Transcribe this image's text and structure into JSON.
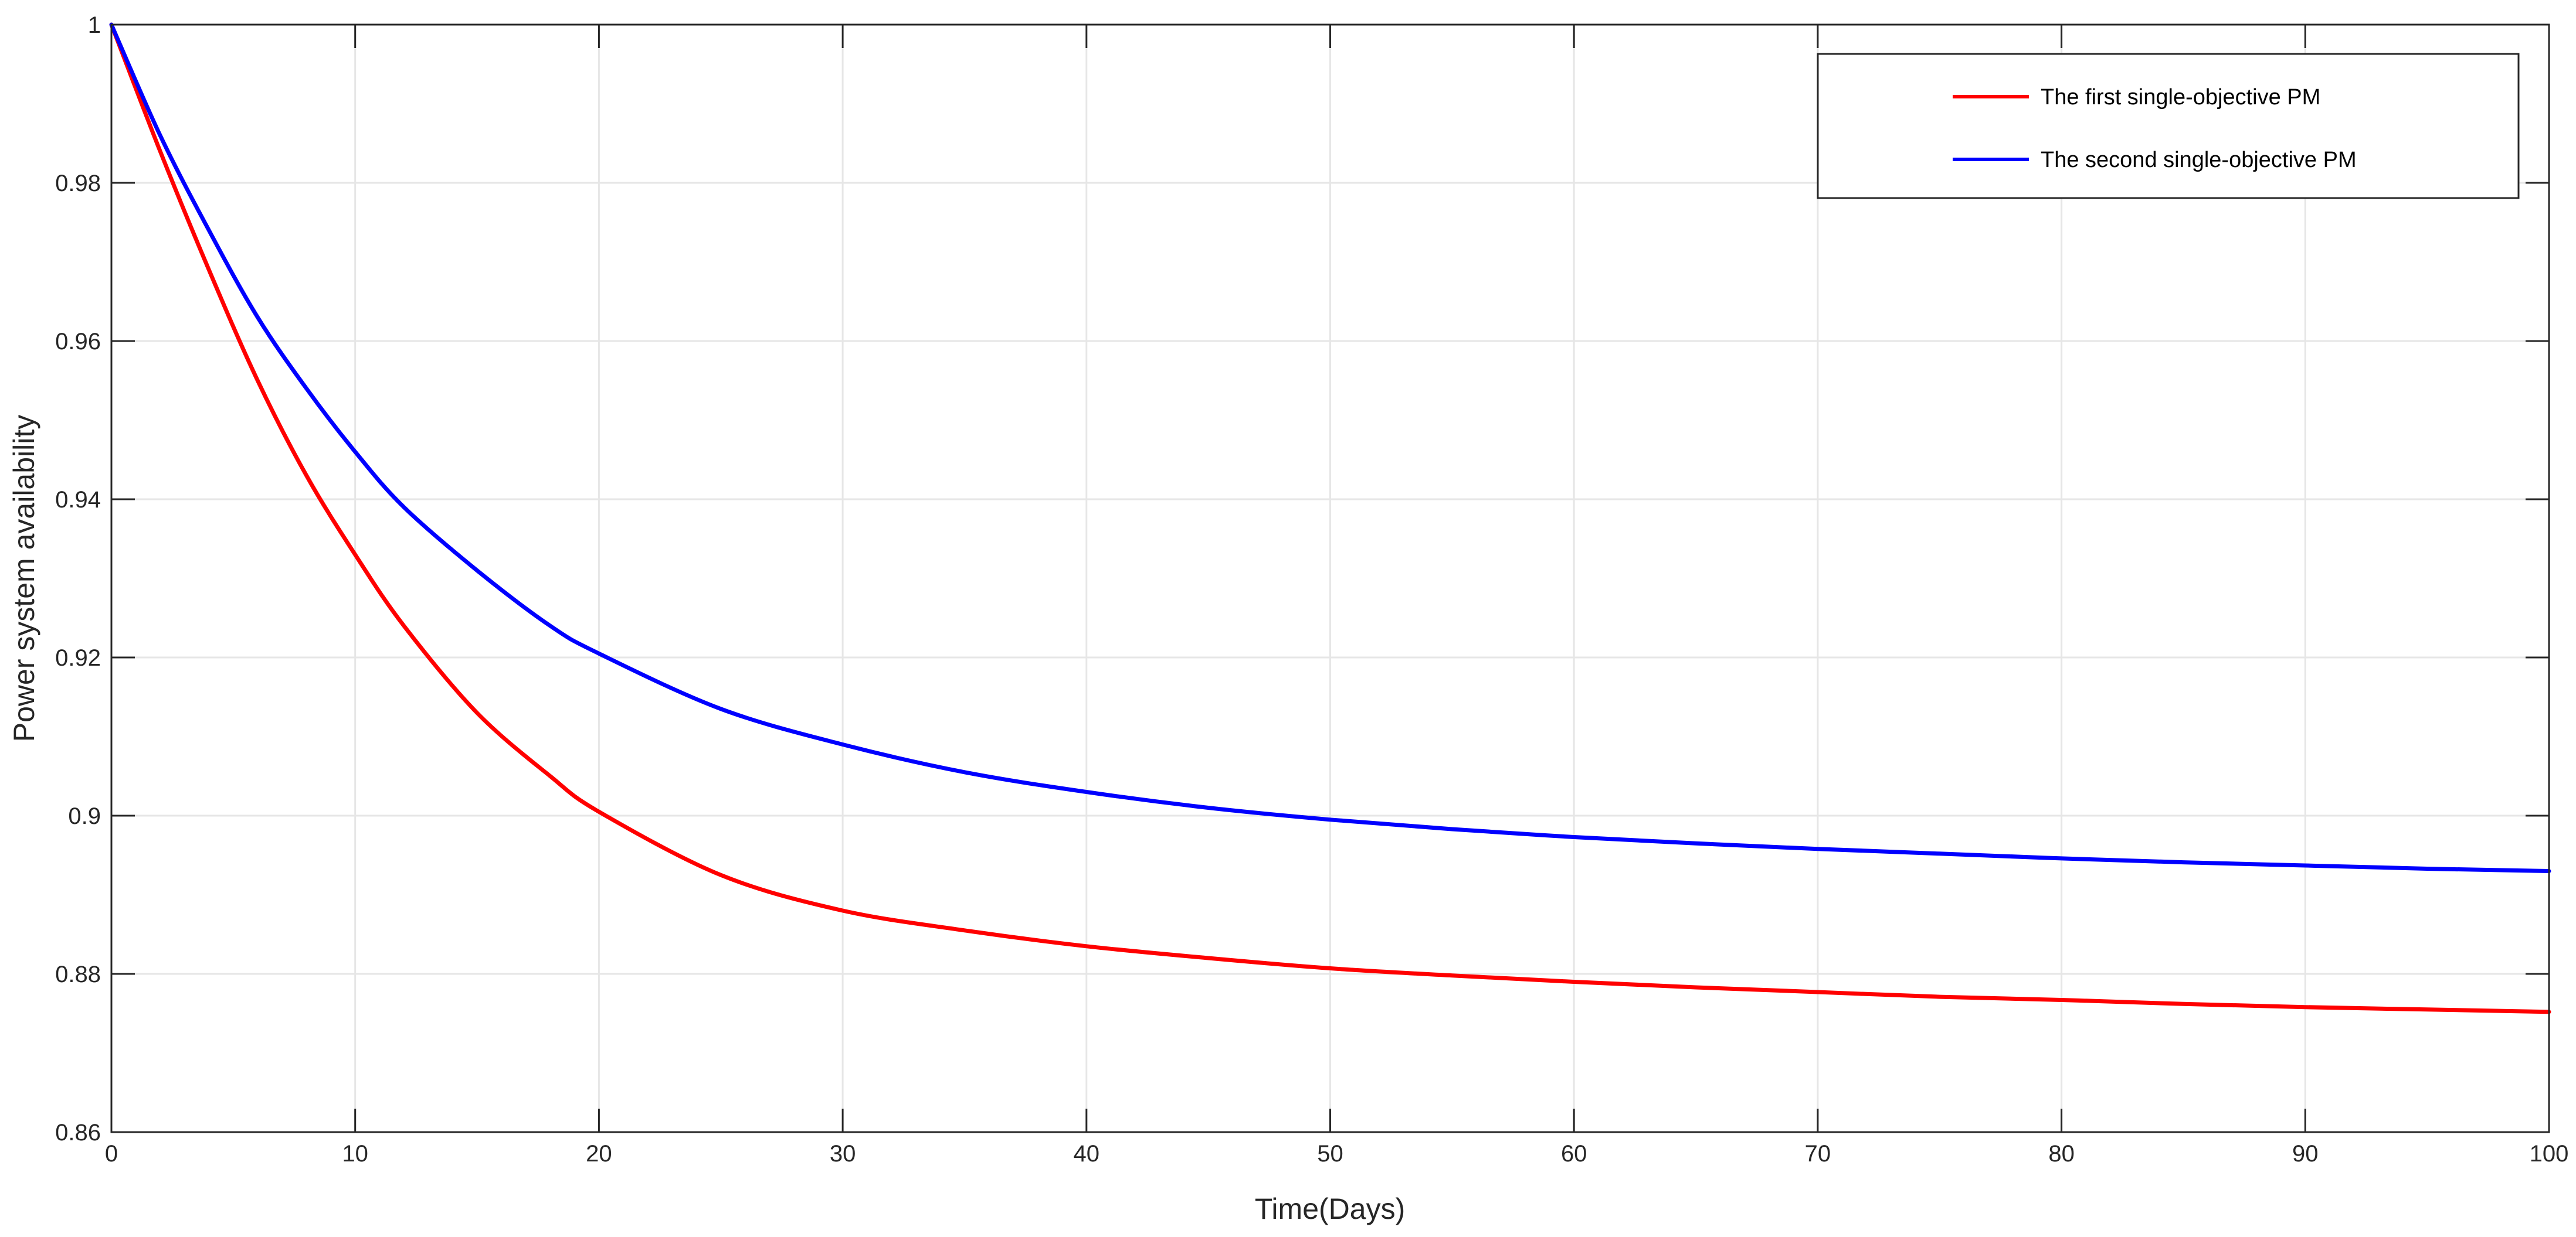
{
  "chart_data": {
    "type": "line",
    "title": "",
    "xlabel": "Time(Days)",
    "ylabel": "Power system availability",
    "xlim": [
      0,
      100
    ],
    "ylim": [
      0.86,
      1
    ],
    "grid": true,
    "legend_position": "top-right",
    "xticks": [
      0,
      10,
      20,
      30,
      40,
      50,
      60,
      70,
      80,
      90,
      100
    ],
    "xtick_labels": [
      "0",
      "10",
      "20",
      "30",
      "40",
      "50",
      "60",
      "70",
      "80",
      "90",
      "100"
    ],
    "yticks": [
      0.86,
      0.88,
      0.9,
      0.92,
      0.94,
      0.96,
      0.98,
      1
    ],
    "ytick_labels": [
      "0.86",
      "0.88",
      "0.9",
      "0.92",
      "0.94",
      "0.96",
      "0.98",
      "1"
    ],
    "x": [
      0,
      2,
      4,
      6,
      8,
      10,
      12,
      15,
      18,
      20,
      25,
      30,
      35,
      40,
      45,
      50,
      55,
      60,
      65,
      70,
      75,
      80,
      85,
      90,
      95,
      100
    ],
    "series": [
      {
        "name": "The first single-objective PM",
        "color": "#ff0000",
        "values": [
          1.0,
          0.984,
          0.969,
          0.955,
          0.943,
          0.933,
          0.924,
          0.913,
          0.905,
          0.9005,
          0.8925,
          0.888,
          0.8855,
          0.8835,
          0.882,
          0.8807,
          0.8798,
          0.879,
          0.8783,
          0.8777,
          0.8771,
          0.8767,
          0.8762,
          0.8758,
          0.8755,
          0.8752
        ]
      },
      {
        "name": "The second single-objective PM",
        "color": "#0000ff",
        "values": [
          1.0,
          0.986,
          0.974,
          0.963,
          0.954,
          0.946,
          0.939,
          0.931,
          0.924,
          0.9205,
          0.9135,
          0.909,
          0.9055,
          0.903,
          0.901,
          0.8995,
          0.8983,
          0.8973,
          0.8965,
          0.8958,
          0.8952,
          0.8946,
          0.8941,
          0.8937,
          0.8933,
          0.893
        ]
      }
    ],
    "colors": {
      "grid": "#e6e6e6",
      "axis": "#262626"
    }
  }
}
